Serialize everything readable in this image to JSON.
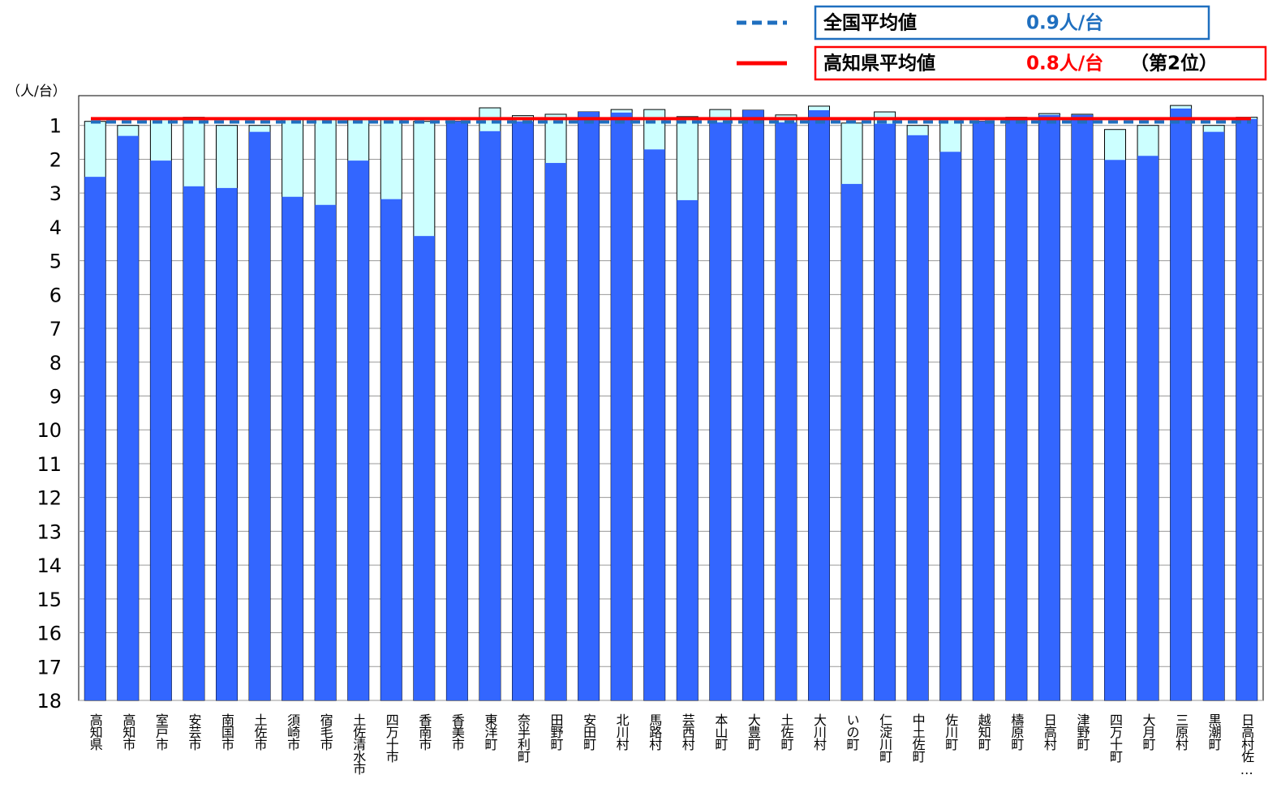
{
  "chart_data": {
    "type": "bar",
    "y_label": "（人/台）",
    "categories": [
      "高知県",
      "高知市",
      "室戸市",
      "安芸市",
      "南国市",
      "土佐市",
      "須崎市",
      "宿毛市",
      "土佐清水市",
      "四万十市",
      "香南市",
      "香美市",
      "東洋町",
      "奈半利町",
      "田野町",
      "安田町",
      "北川村",
      "馬路村",
      "芸西村",
      "本山町",
      "大豊町",
      "土佐町",
      "大川村",
      "いの町",
      "仁淀川町",
      "中土佐町",
      "佐川町",
      "越知町",
      "檮原町",
      "日高村",
      "津野町",
      "四万十町",
      "大月町",
      "三原村",
      "黒潮町",
      "日高村佐…"
    ],
    "series": [
      {
        "color": "#ccffff",
        "values": [
          0.88,
          1.0,
          0.79,
          0.76,
          1.0,
          1.0,
          0.81,
          0.83,
          0.83,
          0.79,
          0.88,
          0.88,
          0.48,
          0.71,
          0.67,
          0.6,
          0.53,
          0.53,
          0.74,
          0.53,
          0.55,
          0.69,
          0.43,
          0.93,
          0.6,
          1.0,
          0.81,
          0.88,
          0.76,
          0.65,
          0.67,
          1.12,
          1.0,
          0.41,
          1.0,
          0.76
        ]
      },
      {
        "color": "#3366ff",
        "values": [
          2.52,
          1.31,
          2.04,
          2.8,
          2.85,
          1.19,
          3.11,
          3.35,
          2.04,
          3.18,
          4.27,
          0.88,
          1.17,
          0.88,
          2.11,
          0.6,
          0.62,
          1.71,
          3.21,
          0.91,
          0.55,
          0.91,
          0.55,
          2.73,
          0.95,
          1.29,
          1.78,
          0.88,
          0.79,
          0.69,
          0.69,
          2.02,
          1.9,
          0.5,
          1.19,
          0.81
        ]
      }
    ],
    "ylim": [
      0,
      18
    ],
    "reversed": true,
    "yticks": [
      1,
      2,
      3,
      4,
      5,
      6,
      7,
      8,
      9,
      10,
      11,
      12,
      13,
      14,
      15,
      16,
      17,
      18
    ],
    "grid": true,
    "reference_lines": [
      {
        "name": "全国平均値",
        "value": 0.9,
        "label": "0.9人/台",
        "color": "#1f6fbf",
        "style": "dashed"
      },
      {
        "name": "高知県平均値",
        "value": 0.8,
        "label": "0.8人/台",
        "rank_label": "（第2位）",
        "color": "#ff0000",
        "style": "solid"
      }
    ]
  }
}
